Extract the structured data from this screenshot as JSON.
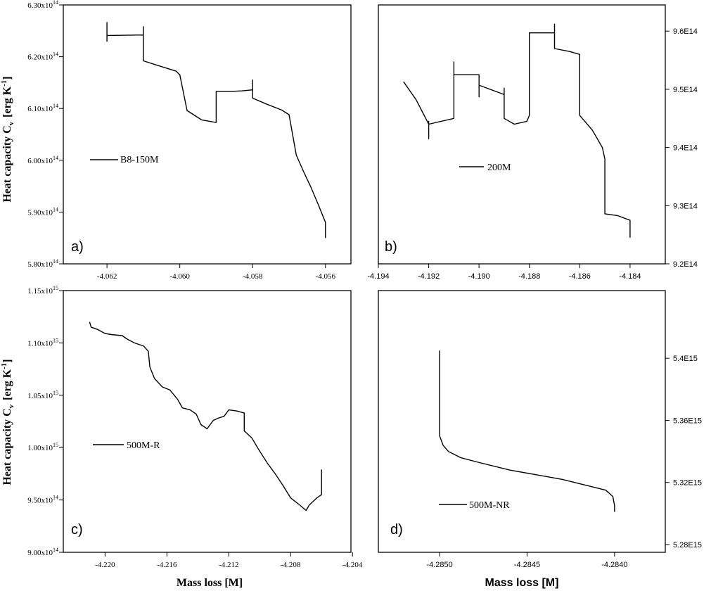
{
  "figure": {
    "ylabel_main": "Heat capacity C",
    "ylabel_sub": "v",
    "ylabel_unit_pre": "[erg K",
    "ylabel_unit_exp": "-1",
    "ylabel_unit_post": "]",
    "xlabel_left": "Mass loss [M]",
    "xlabel_right": "Mass loss [M]"
  },
  "chart_data": [
    {
      "id": "a",
      "type": "line",
      "panel_label": "a)",
      "legend": "B8-150M",
      "xlim": [
        -4.0632,
        -4.0553
      ],
      "ylim": [
        5.8,
        6.3
      ],
      "y_side": "left",
      "yticks": [
        {
          "v": 5.8,
          "m": "5.80x10",
          "e": "14"
        },
        {
          "v": 5.9,
          "m": "5.90x10",
          "e": "14"
        },
        {
          "v": 6.0,
          "m": "6.00x10",
          "e": "14"
        },
        {
          "v": 6.1,
          "m": "6.10x10",
          "e": "14"
        },
        {
          "v": 6.2,
          "m": "6.20x10",
          "e": "14"
        },
        {
          "v": 6.3,
          "m": "6.30x10",
          "e": "14"
        }
      ],
      "xticks": [
        {
          "v": -4.062,
          "t": "-4.062"
        },
        {
          "v": -4.06,
          "t": "-4.060"
        },
        {
          "v": -4.058,
          "t": "-4.058"
        },
        {
          "v": -4.056,
          "t": "-4.056"
        }
      ],
      "series": [
        {
          "x": [
            -4.062,
            -4.062,
            -4.062,
            -4.061,
            -4.061,
            -4.061,
            -4.0606,
            -4.0601,
            -4.06,
            -4.0598,
            -4.0594,
            -4.059,
            -4.059,
            -4.0586,
            -4.0583,
            -4.058,
            -4.058,
            -4.058,
            -4.058,
            -4.0576,
            -4.0572,
            -4.057,
            -4.0568,
            -4.0566,
            -4.0564,
            -4.0562,
            -4.056,
            -4.056,
            -4.056
          ],
          "y": [
            6.229,
            6.266,
            6.241,
            6.242,
            6.258,
            6.192,
            6.183,
            6.172,
            6.165,
            6.096,
            6.078,
            6.073,
            6.133,
            6.133,
            6.134,
            6.136,
            6.155,
            6.132,
            6.12,
            6.108,
            6.097,
            6.088,
            6.01,
            5.978,
            5.948,
            5.915,
            5.88,
            5.87,
            5.85
          ]
        }
      ]
    },
    {
      "id": "b",
      "type": "line",
      "panel_label": "b)",
      "legend": "200M",
      "xlim": [
        -4.194,
        -4.1826
      ],
      "ylim": [
        9.2,
        9.645
      ],
      "y_side": "right",
      "yticks": [
        {
          "v": 9.2,
          "m": "9.2E14",
          "e": ""
        },
        {
          "v": 9.3,
          "m": "9.3E14",
          "e": ""
        },
        {
          "v": 9.4,
          "m": "9.4E14",
          "e": ""
        },
        {
          "v": 9.5,
          "m": "9.5E14",
          "e": ""
        },
        {
          "v": 9.6,
          "m": "9.6E14",
          "e": ""
        }
      ],
      "xticks": [
        {
          "v": -4.194,
          "t": "-4.194"
        },
        {
          "v": -4.192,
          "t": "-4.192"
        },
        {
          "v": -4.19,
          "t": "-4.190"
        },
        {
          "v": -4.188,
          "t": "-4.188"
        },
        {
          "v": -4.186,
          "t": "-4.186"
        },
        {
          "v": -4.184,
          "t": "-4.184"
        }
      ],
      "series": [
        {
          "x": [
            -4.193,
            -4.1925,
            -4.192,
            -4.192,
            -4.192,
            -4.192,
            -4.191,
            -4.191,
            -4.191,
            -4.19,
            -4.19,
            -4.19,
            -4.189,
            -4.189,
            -4.189,
            -4.1886,
            -4.1881,
            -4.188,
            -4.188,
            -4.187,
            -4.187,
            -4.187,
            -4.1864,
            -4.186,
            -4.186,
            -4.1855,
            -4.1851,
            -4.185,
            -4.185,
            -4.1845,
            -4.184,
            -4.184
          ],
          "y": [
            9.513,
            9.482,
            9.44,
            9.415,
            9.445,
            9.44,
            9.45,
            9.547,
            9.525,
            9.525,
            9.487,
            9.507,
            9.491,
            9.502,
            9.45,
            9.44,
            9.445,
            9.455,
            9.597,
            9.597,
            9.612,
            9.57,
            9.565,
            9.56,
            9.455,
            9.43,
            9.4,
            9.38,
            9.286,
            9.283,
            9.275,
            9.245
          ]
        }
      ]
    },
    {
      "id": "c",
      "type": "line",
      "panel_label": "c)",
      "legend": "500M-R",
      "xlim": [
        -4.2227,
        -4.2041
      ],
      "ylim": [
        9.0,
        11.5
      ],
      "y_side": "left",
      "yticks": [
        {
          "v": 9.0,
          "m": "9.00x10",
          "e": "14"
        },
        {
          "v": 9.5,
          "m": "9.50x10",
          "e": "14"
        },
        {
          "v": 10.0,
          "m": "1.00x10",
          "e": "15"
        },
        {
          "v": 10.5,
          "m": "1.05x10",
          "e": "15"
        },
        {
          "v": 11.0,
          "m": "1.10x10",
          "e": "15"
        },
        {
          "v": 11.5,
          "m": "1.15x10",
          "e": "15"
        }
      ],
      "xticks": [
        {
          "v": -4.22,
          "t": "-4.220"
        },
        {
          "v": -4.216,
          "t": "-4.216"
        },
        {
          "v": -4.212,
          "t": "-4.212"
        },
        {
          "v": -4.208,
          "t": "-4.208"
        },
        {
          "v": -4.204,
          "t": "-4.204"
        }
      ],
      "series": [
        {
          "x": [
            -4.221,
            -4.2209,
            -4.2205,
            -4.22,
            -4.2196,
            -4.2189,
            -4.2187,
            -4.2185,
            -4.2181,
            -4.2175,
            -4.2172,
            -4.2171,
            -4.2168,
            -4.2163,
            -4.2158,
            -4.2153,
            -4.215,
            -4.2145,
            -4.2141,
            -4.2138,
            -4.2134,
            -4.213,
            -4.2127,
            -4.2123,
            -4.212,
            -4.2115,
            -4.211,
            -4.211,
            -4.2105,
            -4.2101,
            -4.2095,
            -4.209,
            -4.2085,
            -4.208,
            -4.2074,
            -4.207,
            -4.2068,
            -4.2063,
            -4.206,
            -4.206
          ],
          "y": [
            11.2,
            11.15,
            11.13,
            11.09,
            11.08,
            11.07,
            11.05,
            11.03,
            11.0,
            10.97,
            10.92,
            10.77,
            10.66,
            10.58,
            10.55,
            10.46,
            10.38,
            10.36,
            10.32,
            10.22,
            10.18,
            10.26,
            10.28,
            10.3,
            10.36,
            10.35,
            10.33,
            10.16,
            10.09,
            9.99,
            9.85,
            9.75,
            9.64,
            9.52,
            9.45,
            9.4,
            9.45,
            9.52,
            9.55,
            9.79
          ]
        }
      ]
    },
    {
      "id": "d",
      "type": "line",
      "panel_label": "d)",
      "legend": "500M-NR",
      "xlim": [
        -4.28535,
        -4.28371
      ],
      "ylim": [
        5.275,
        5.4436
      ],
      "y_side": "right",
      "yticks": [
        {
          "v": 5.28,
          "m": "5.28E15",
          "e": ""
        },
        {
          "v": 5.32,
          "m": "5.32E15",
          "e": ""
        },
        {
          "v": 5.36,
          "m": "5.36E15",
          "e": ""
        },
        {
          "v": 5.4,
          "m": "5.4E15",
          "e": ""
        }
      ],
      "xticks": [
        {
          "v": -4.285,
          "t": "-4.2850"
        },
        {
          "v": -4.2845,
          "t": "-4.2845"
        },
        {
          "v": -4.284,
          "t": "-4.2840"
        }
      ],
      "series": [
        {
          "x": [
            -4.285,
            -4.285,
            -4.285,
            -4.285,
            -4.28498,
            -4.28495,
            -4.28488,
            -4.28478,
            -4.2846,
            -4.2843,
            -4.28405,
            -4.28401,
            -4.284,
            -4.284
          ],
          "y": [
            5.405,
            5.37,
            5.36,
            5.35,
            5.344,
            5.34,
            5.336,
            5.333,
            5.328,
            5.322,
            5.315,
            5.311,
            5.305,
            5.301
          ]
        }
      ]
    }
  ]
}
